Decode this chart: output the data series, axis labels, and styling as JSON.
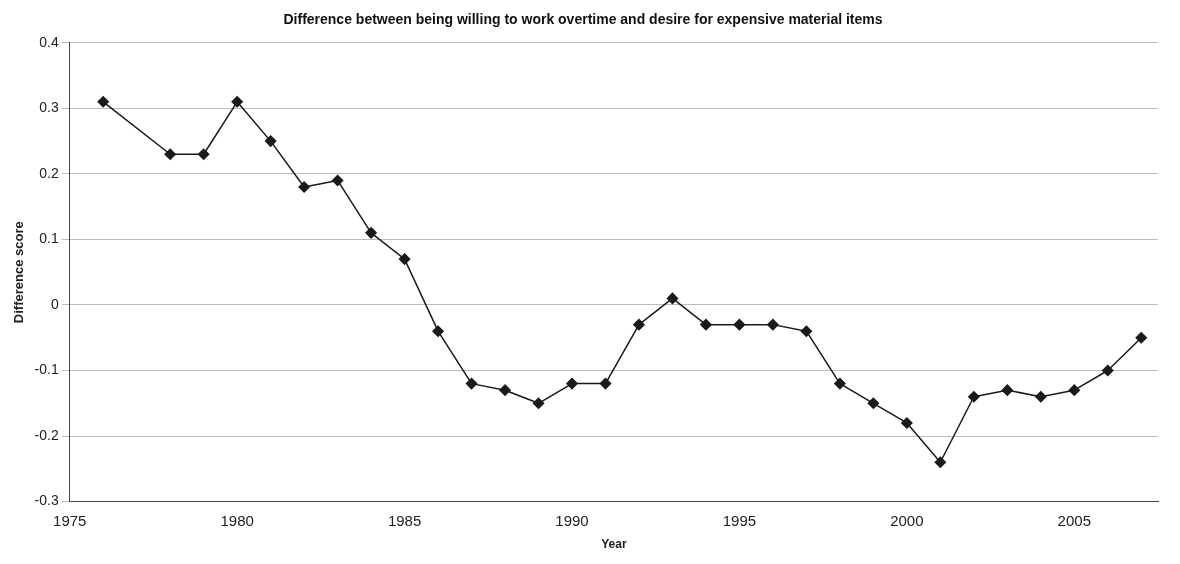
{
  "chart_data": {
    "type": "line",
    "title": "Difference between being willing to work overtime and desire for expensive material items",
    "xlabel": "Year",
    "ylabel": "Difference score",
    "x": [
      1976,
      1978,
      1979,
      1980,
      1981,
      1982,
      1983,
      1984,
      1985,
      1986,
      1987,
      1988,
      1989,
      1990,
      1991,
      1992,
      1993,
      1994,
      1995,
      1996,
      1997,
      1998,
      1999,
      2000,
      2001,
      2002,
      2003,
      2004,
      2005,
      2006,
      2007
    ],
    "series": [
      {
        "color": "#1a1a1a",
        "values": [
          0.31,
          0.23,
          0.23,
          0.31,
          0.25,
          0.18,
          0.19,
          0.11,
          0.07,
          -0.04,
          -0.12,
          -0.13,
          -0.15,
          -0.12,
          -0.12,
          -0.03,
          0.01,
          -0.03,
          -0.03,
          -0.03,
          -0.04,
          -0.12,
          -0.15,
          -0.18,
          -0.24,
          -0.14,
          -0.13,
          -0.14,
          -0.13,
          -0.1,
          -0.05
        ]
      }
    ],
    "xlim": [
      1975,
      2007.5
    ],
    "xticks": [
      1975,
      1980,
      1985,
      1990,
      1995,
      2000,
      2005
    ],
    "ylim": [
      -0.3,
      0.4
    ],
    "yticks": [
      -0.3,
      -0.2,
      -0.1,
      0,
      0.1,
      0.2,
      0.3,
      0.4
    ],
    "grid": "y",
    "legend": false,
    "marker": "diamond",
    "line_style": "solid"
  }
}
